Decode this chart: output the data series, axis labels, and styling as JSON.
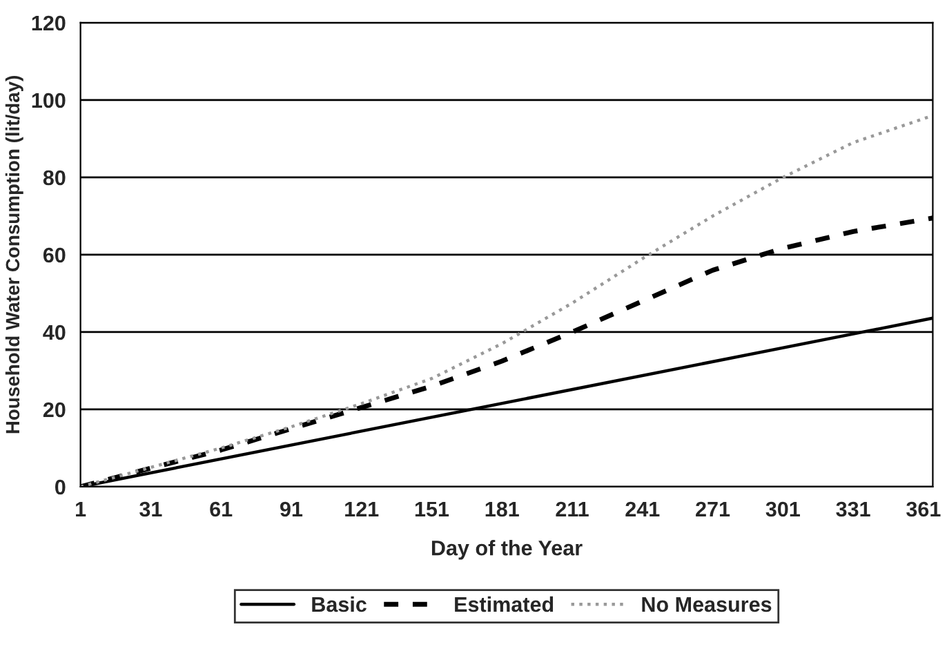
{
  "chart_data": {
    "type": "line",
    "xlabel": "Day of the Year",
    "ylabel": "Household Water Consumption (lit/day)",
    "xlim": [
      1,
      365
    ],
    "xticks": [
      1,
      31,
      61,
      91,
      121,
      151,
      181,
      211,
      241,
      271,
      301,
      331,
      361
    ],
    "ylim": [
      0,
      120
    ],
    "yticks": [
      0,
      20,
      40,
      60,
      80,
      100,
      120
    ],
    "grid": "y",
    "legend": "bottom",
    "marker": "none",
    "series": [
      {
        "name": "Basic",
        "color": "#000000",
        "line_style": "solid",
        "x": [
          1,
          365
        ],
        "values": [
          0,
          43.6
        ]
      },
      {
        "name": "Estimated",
        "color": "#000000",
        "line_style": "dashed",
        "x": [
          1,
          31,
          61,
          91,
          121,
          151,
          181,
          211,
          241,
          271,
          300,
          331,
          365
        ],
        "values": [
          0,
          4.8,
          9.5,
          15,
          20.5,
          26,
          32.5,
          40,
          48,
          56,
          61.5,
          66,
          69.5
        ]
      },
      {
        "name": "No Measures",
        "color": "#999999",
        "line_style": "dotted",
        "x": [
          1,
          31,
          61,
          91,
          121,
          151,
          181,
          211,
          241,
          271,
          301,
          331,
          365
        ],
        "values": [
          0,
          5,
          10,
          15.5,
          21.5,
          28,
          37,
          47.5,
          59,
          70,
          80,
          89,
          96
        ]
      }
    ]
  }
}
